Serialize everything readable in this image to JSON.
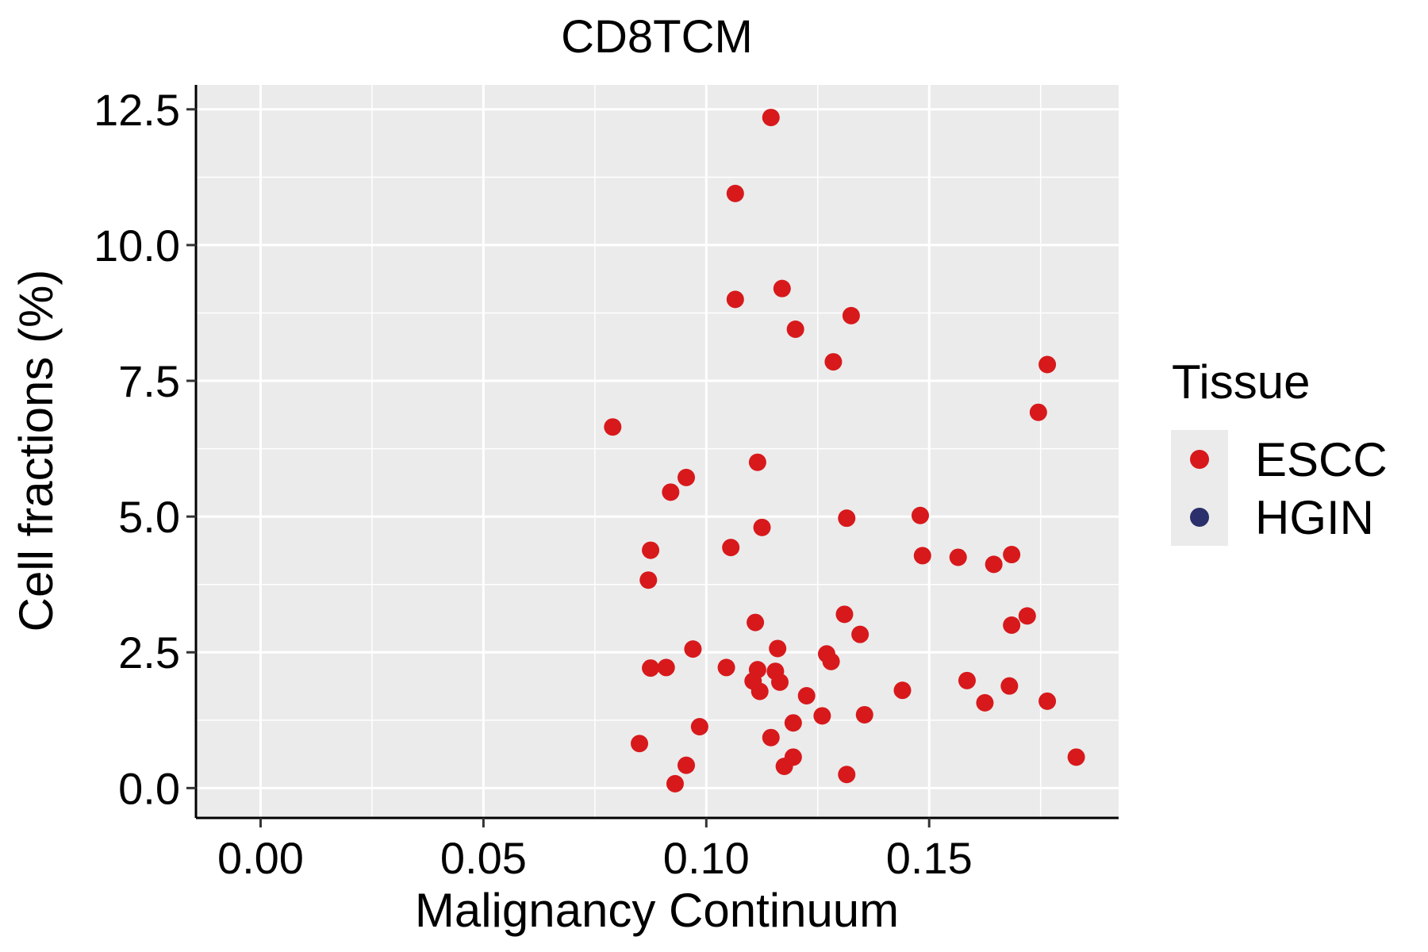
{
  "chart_data": {
    "type": "scatter",
    "title": "CD8TCM",
    "xlabel": "Malignancy Continuum",
    "ylabel": "Cell fractions (%)",
    "xlim": [
      -0.0145,
      0.1925
    ],
    "ylim": [
      -0.55,
      12.95
    ],
    "x_ticks": [
      0.0,
      0.05,
      0.1,
      0.15
    ],
    "x_tick_labels": [
      "0.00",
      "0.05",
      "0.10",
      "0.15"
    ],
    "y_ticks": [
      0.0,
      2.5,
      5.0,
      7.5,
      10.0,
      12.5
    ],
    "y_tick_labels": [
      "0.0",
      "2.5",
      "5.0",
      "7.5",
      "10.0",
      "12.5"
    ],
    "grid": true,
    "legend": {
      "title": "Tissue",
      "position": "right",
      "entries": [
        {
          "label": "ESCC",
          "color": "#d7191c"
        },
        {
          "label": "HGIN",
          "color": "#2b2f6b"
        }
      ]
    },
    "series": [
      {
        "name": "ESCC",
        "color": "#d7191c",
        "points": [
          [
            0.1145,
            12.35
          ],
          [
            0.1065,
            10.95
          ],
          [
            0.1065,
            9.0
          ],
          [
            0.117,
            9.2
          ],
          [
            0.1325,
            8.7
          ],
          [
            0.12,
            8.45
          ],
          [
            0.1285,
            7.85
          ],
          [
            0.1765,
            7.8
          ],
          [
            0.1745,
            6.92
          ],
          [
            0.079,
            6.65
          ],
          [
            0.1115,
            6.0
          ],
          [
            0.0955,
            5.72
          ],
          [
            0.092,
            5.45
          ],
          [
            0.1315,
            4.97
          ],
          [
            0.148,
            5.02
          ],
          [
            0.1125,
            4.8
          ],
          [
            0.0875,
            4.38
          ],
          [
            0.1055,
            4.43
          ],
          [
            0.1485,
            4.28
          ],
          [
            0.1565,
            4.25
          ],
          [
            0.1685,
            4.3
          ],
          [
            0.1645,
            4.12
          ],
          [
            0.087,
            3.83
          ],
          [
            0.131,
            3.2
          ],
          [
            0.172,
            3.17
          ],
          [
            0.111,
            3.05
          ],
          [
            0.1685,
            3.0
          ],
          [
            0.1345,
            2.83
          ],
          [
            0.097,
            2.56
          ],
          [
            0.116,
            2.57
          ],
          [
            0.127,
            2.47
          ],
          [
            0.128,
            2.33
          ],
          [
            0.0875,
            2.21
          ],
          [
            0.091,
            2.22
          ],
          [
            0.1045,
            2.22
          ],
          [
            0.1115,
            2.18
          ],
          [
            0.1155,
            2.15
          ],
          [
            0.1105,
            1.97
          ],
          [
            0.1165,
            1.95
          ],
          [
            0.1585,
            1.98
          ],
          [
            0.112,
            1.78
          ],
          [
            0.1225,
            1.7
          ],
          [
            0.144,
            1.8
          ],
          [
            0.168,
            1.88
          ],
          [
            0.1625,
            1.57
          ],
          [
            0.1765,
            1.6
          ],
          [
            0.126,
            1.33
          ],
          [
            0.1355,
            1.35
          ],
          [
            0.0985,
            1.13
          ],
          [
            0.1195,
            1.2
          ],
          [
            0.085,
            0.82
          ],
          [
            0.1145,
            0.93
          ],
          [
            0.1195,
            0.57
          ],
          [
            0.183,
            0.57
          ],
          [
            0.0955,
            0.42
          ],
          [
            0.1175,
            0.4
          ],
          [
            0.1315,
            0.25
          ],
          [
            0.093,
            0.08
          ]
        ]
      },
      {
        "name": "HGIN",
        "color": "#2b2f6b",
        "points": []
      }
    ]
  }
}
